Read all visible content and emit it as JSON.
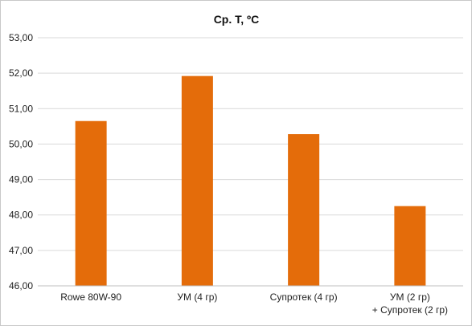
{
  "chart_data": {
    "type": "bar",
    "title": "Ср. Т, ºС",
    "xlabel": "",
    "ylabel": "",
    "categories": [
      [
        "Rowe 80W-90"
      ],
      [
        "УМ (4 гр)"
      ],
      [
        "Супротек (4 гр)"
      ],
      [
        "УМ (2 гр)",
        "+ Супротек (2 гр)"
      ]
    ],
    "values": [
      50.65,
      51.92,
      50.28,
      48.25
    ],
    "ylim": [
      46,
      53
    ],
    "yticks": [
      "46,00",
      "47,00",
      "48,00",
      "49,00",
      "50,00",
      "51,00",
      "52,00",
      "53,00"
    ],
    "grid": true,
    "legend": "none",
    "bar_color": "#E46C0A"
  }
}
